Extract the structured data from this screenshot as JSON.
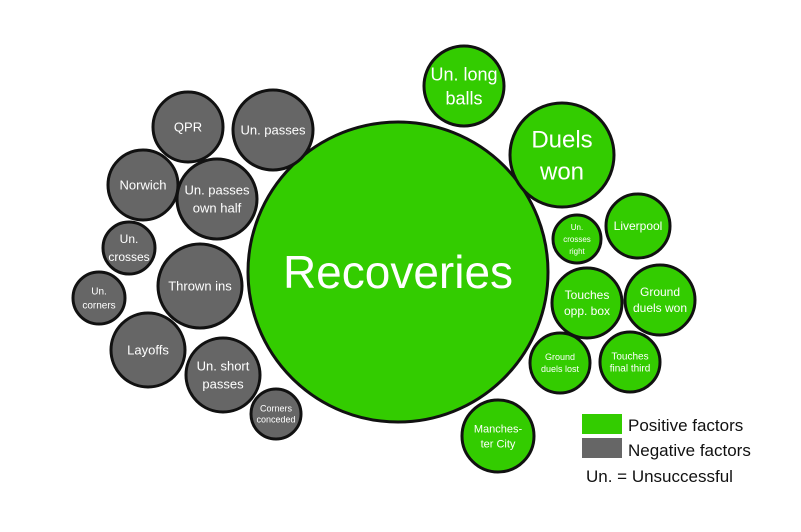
{
  "colors": {
    "positive": "#33cc00",
    "negative": "#666666",
    "stroke": "#111111",
    "text": "#ffffff"
  },
  "center": {
    "lines": [
      "Recoveries"
    ]
  },
  "negative_bubbles": [
    {
      "id": "qpr",
      "lines": [
        "QPR"
      ]
    },
    {
      "id": "un-passes",
      "lines": [
        "Un. passes"
      ]
    },
    {
      "id": "norwich",
      "lines": [
        "Norwich"
      ]
    },
    {
      "id": "un-passes-own-half",
      "lines": [
        "Un. passes",
        "own half"
      ]
    },
    {
      "id": "un-crosses",
      "lines": [
        "Un.",
        "crosses"
      ]
    },
    {
      "id": "thrown-ins",
      "lines": [
        "Thrown ins"
      ]
    },
    {
      "id": "un-corners",
      "lines": [
        "Un.",
        "corners"
      ]
    },
    {
      "id": "layoffs",
      "lines": [
        "Layoffs"
      ]
    },
    {
      "id": "un-short-passes",
      "lines": [
        "Un. short",
        "passes"
      ]
    },
    {
      "id": "corners-conceded",
      "lines": [
        "Corners",
        "conceded"
      ]
    }
  ],
  "positive_bubbles": [
    {
      "id": "un-long-balls",
      "lines": [
        "Un. long",
        "balls"
      ]
    },
    {
      "id": "duels-won",
      "lines": [
        "Duels",
        "won"
      ]
    },
    {
      "id": "un-crosses-right",
      "lines": [
        "Un.",
        "crosses",
        "right"
      ]
    },
    {
      "id": "liverpool",
      "lines": [
        "Liverpool"
      ]
    },
    {
      "id": "touches-opp-box",
      "lines": [
        "Touches",
        "opp. box"
      ]
    },
    {
      "id": "ground-duels-won",
      "lines": [
        "Ground",
        "duels won"
      ]
    },
    {
      "id": "ground-duels-lost",
      "lines": [
        "Ground",
        "duels lost"
      ]
    },
    {
      "id": "touches-final-third",
      "lines": [
        "Touches",
        "final third"
      ]
    },
    {
      "id": "manchester-city",
      "lines": [
        "Manches-",
        "ter City"
      ]
    }
  ],
  "legend": {
    "positive_label": "Positive factors",
    "negative_label": "Negative factors",
    "note": "Un. = Unsuccessful"
  }
}
